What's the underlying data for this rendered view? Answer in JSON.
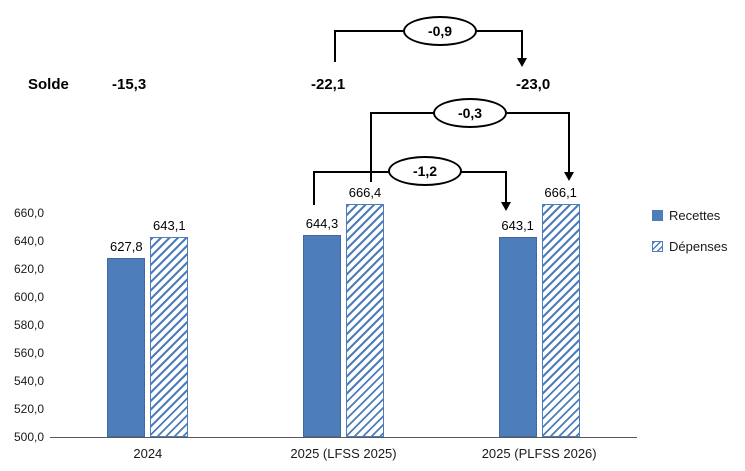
{
  "chart_data": {
    "type": "bar",
    "title": "",
    "xlabel": "",
    "ylabel": "",
    "categories": [
      "2024",
      "2025 (LFSS 2025)",
      "2025 (PLFSS 2026)"
    ],
    "series": [
      {
        "name": "Recettes",
        "key": "recettes",
        "style": "solid",
        "values": [
          627.8,
          644.3,
          643.1
        ],
        "labels": [
          "627,8",
          "644,3",
          "643,1"
        ]
      },
      {
        "name": "Dépenses",
        "key": "depenses",
        "style": "hatched",
        "values": [
          643.1,
          666.4,
          666.1
        ],
        "labels": [
          "643,1",
          "666,4",
          "666,1"
        ]
      }
    ],
    "ylim": [
      500,
      660
    ],
    "ytick_values": [
      500,
      520,
      540,
      560,
      580,
      600,
      620,
      640,
      660
    ],
    "grid": false,
    "legend_position": "right",
    "colors": {
      "bar_blue": "#4D7EBB"
    },
    "annotations": {
      "solde_label": "Solde",
      "solde_values": [
        "-15,3",
        "-22,1",
        "-23,0"
      ],
      "bridges": [
        "-0,9",
        "-0,3",
        "-1,2"
      ]
    }
  }
}
